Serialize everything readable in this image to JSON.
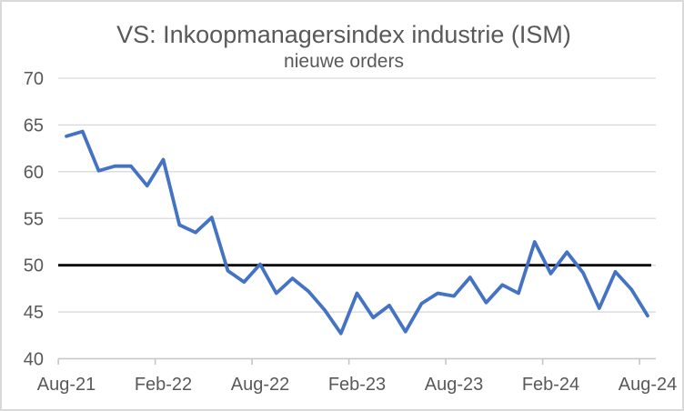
{
  "chart_data": {
    "type": "line",
    "title": "VS: Inkoopmanagersindex industrie (ISM)",
    "subtitle": "nieuwe orders",
    "x": [
      "Aug-21",
      "Sep-21",
      "Oct-21",
      "Nov-21",
      "Dec-21",
      "Jan-22",
      "Feb-22",
      "Mar-22",
      "Apr-22",
      "May-22",
      "Jun-22",
      "Jul-22",
      "Aug-22",
      "Sep-22",
      "Oct-22",
      "Nov-22",
      "Dec-22",
      "Jan-23",
      "Feb-23",
      "Mar-23",
      "Apr-23",
      "May-23",
      "Jun-23",
      "Jul-23",
      "Aug-23",
      "Sep-23",
      "Oct-23",
      "Nov-23",
      "Dec-23",
      "Jan-24",
      "Feb-24",
      "Mar-24",
      "Apr-24",
      "May-24",
      "Jun-24",
      "Jul-24",
      "Aug-24"
    ],
    "values": [
      63.8,
      64.3,
      60.1,
      60.6,
      60.6,
      58.5,
      61.3,
      54.3,
      53.5,
      55.1,
      49.4,
      48.2,
      50.1,
      47.0,
      48.6,
      47.2,
      45.2,
      42.7,
      47.0,
      44.4,
      45.7,
      42.9,
      45.9,
      47.0,
      46.7,
      48.7,
      46.0,
      47.9,
      47.0,
      52.5,
      49.1,
      51.4,
      49.2,
      45.4,
      49.3,
      47.4,
      44.6
    ],
    "ylim": [
      40,
      70
    ],
    "yticks": [
      70,
      65,
      60,
      55,
      50,
      45,
      40
    ],
    "xtick_labels": [
      "Aug-21",
      "Feb-22",
      "Aug-22",
      "Feb-23",
      "Aug-23",
      "Feb-24",
      "Aug-24"
    ],
    "xtick_every": 6,
    "reference_line": {
      "y": 50
    },
    "grid": "horizontal",
    "legend": "none"
  },
  "style": {
    "line_color": "#4472C4",
    "reference_line_color": "#000000",
    "grid_color": "#D9D9D9",
    "axis_color": "#C6C6C6",
    "text_color": "#595959",
    "background_color": "#FFFFFF",
    "border_color": "#D9D9D9"
  }
}
